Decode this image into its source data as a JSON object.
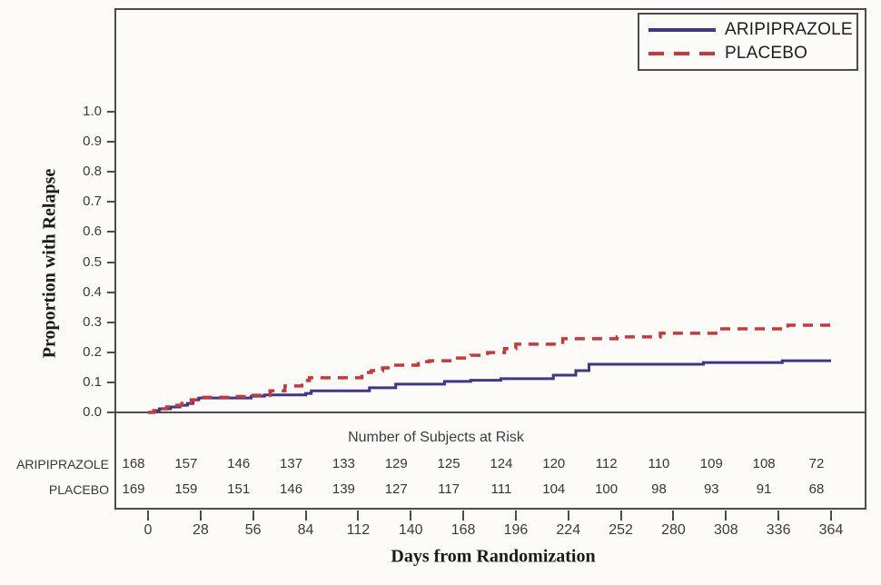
{
  "colors": {
    "aripiprazole": "#3d3689",
    "placebo": "#c5393c",
    "axis": "#4c4c4c",
    "background": "#fcfbf8"
  },
  "chart_data": {
    "type": "line",
    "variant": "kaplan_meier_step",
    "title": "",
    "xlabel": "Days from Randomization",
    "ylabel": "Proportion with Relapse",
    "xlim": [
      0,
      364
    ],
    "ylim": [
      0.0,
      1.0
    ],
    "grid": false,
    "legend_position": "top-right",
    "x_ticks": [
      0,
      28,
      56,
      84,
      112,
      140,
      168,
      196,
      224,
      252,
      280,
      308,
      336,
      364
    ],
    "y_ticks": [
      1.0,
      0.9,
      0.8,
      0.7,
      0.6,
      0.5,
      0.4,
      0.3,
      0.2,
      0.1,
      0.0
    ],
    "y_tick_labels": [
      "1.0",
      "0.9",
      "0.8",
      "0.7",
      "0.6",
      "0.5",
      "0.4",
      "0.3",
      "0.2",
      "0.1",
      "0.0"
    ],
    "series": [
      {
        "name": "ARIPIPRAZOLE",
        "color": "#3d3689",
        "dash": "solid",
        "points": [
          [
            0,
            0
          ],
          [
            3,
            0.006
          ],
          [
            6,
            0.012
          ],
          [
            12,
            0.018
          ],
          [
            17,
            0.024
          ],
          [
            21,
            0.03
          ],
          [
            24,
            0.042
          ],
          [
            27,
            0.048
          ],
          [
            55,
            0.054
          ],
          [
            62,
            0.058
          ],
          [
            84,
            0.063
          ],
          [
            87,
            0.072
          ],
          [
            118,
            0.082
          ],
          [
            132,
            0.094
          ],
          [
            158,
            0.103
          ],
          [
            172,
            0.107
          ],
          [
            188,
            0.112
          ],
          [
            216,
            0.124
          ],
          [
            228,
            0.139
          ],
          [
            235,
            0.16
          ],
          [
            296,
            0.166
          ],
          [
            338,
            0.172
          ],
          [
            364,
            0.172
          ]
        ]
      },
      {
        "name": "PLACEBO",
        "color": "#c5393c",
        "dash": "dashed",
        "points": [
          [
            0,
            0
          ],
          [
            3,
            0.006
          ],
          [
            6,
            0.012
          ],
          [
            10,
            0.018
          ],
          [
            14,
            0.024
          ],
          [
            18,
            0.03
          ],
          [
            23,
            0.042
          ],
          [
            26,
            0.05
          ],
          [
            45,
            0.053
          ],
          [
            55,
            0.057
          ],
          [
            65,
            0.072
          ],
          [
            73,
            0.088
          ],
          [
            82,
            0.106
          ],
          [
            86,
            0.115
          ],
          [
            114,
            0.133
          ],
          [
            119,
            0.139
          ],
          [
            125,
            0.148
          ],
          [
            131,
            0.157
          ],
          [
            144,
            0.169
          ],
          [
            150,
            0.172
          ],
          [
            163,
            0.181
          ],
          [
            172,
            0.19
          ],
          [
            181,
            0.199
          ],
          [
            190,
            0.212
          ],
          [
            196,
            0.227
          ],
          [
            221,
            0.245
          ],
          [
            250,
            0.251
          ],
          [
            273,
            0.263
          ],
          [
            304,
            0.278
          ],
          [
            341,
            0.29
          ],
          [
            364,
            0.293
          ]
        ]
      }
    ],
    "risk_table": {
      "title": "Number of Subjects at Risk",
      "rows": [
        {
          "label": "ARIPIPRAZOLE",
          "counts": [
            168,
            157,
            146,
            137,
            133,
            129,
            125,
            124,
            120,
            112,
            110,
            109,
            108,
            72
          ]
        },
        {
          "label": "PLACEBO",
          "counts": [
            169,
            159,
            151,
            146,
            139,
            127,
            117,
            111,
            104,
            100,
            98,
            93,
            91,
            68
          ]
        }
      ]
    }
  }
}
